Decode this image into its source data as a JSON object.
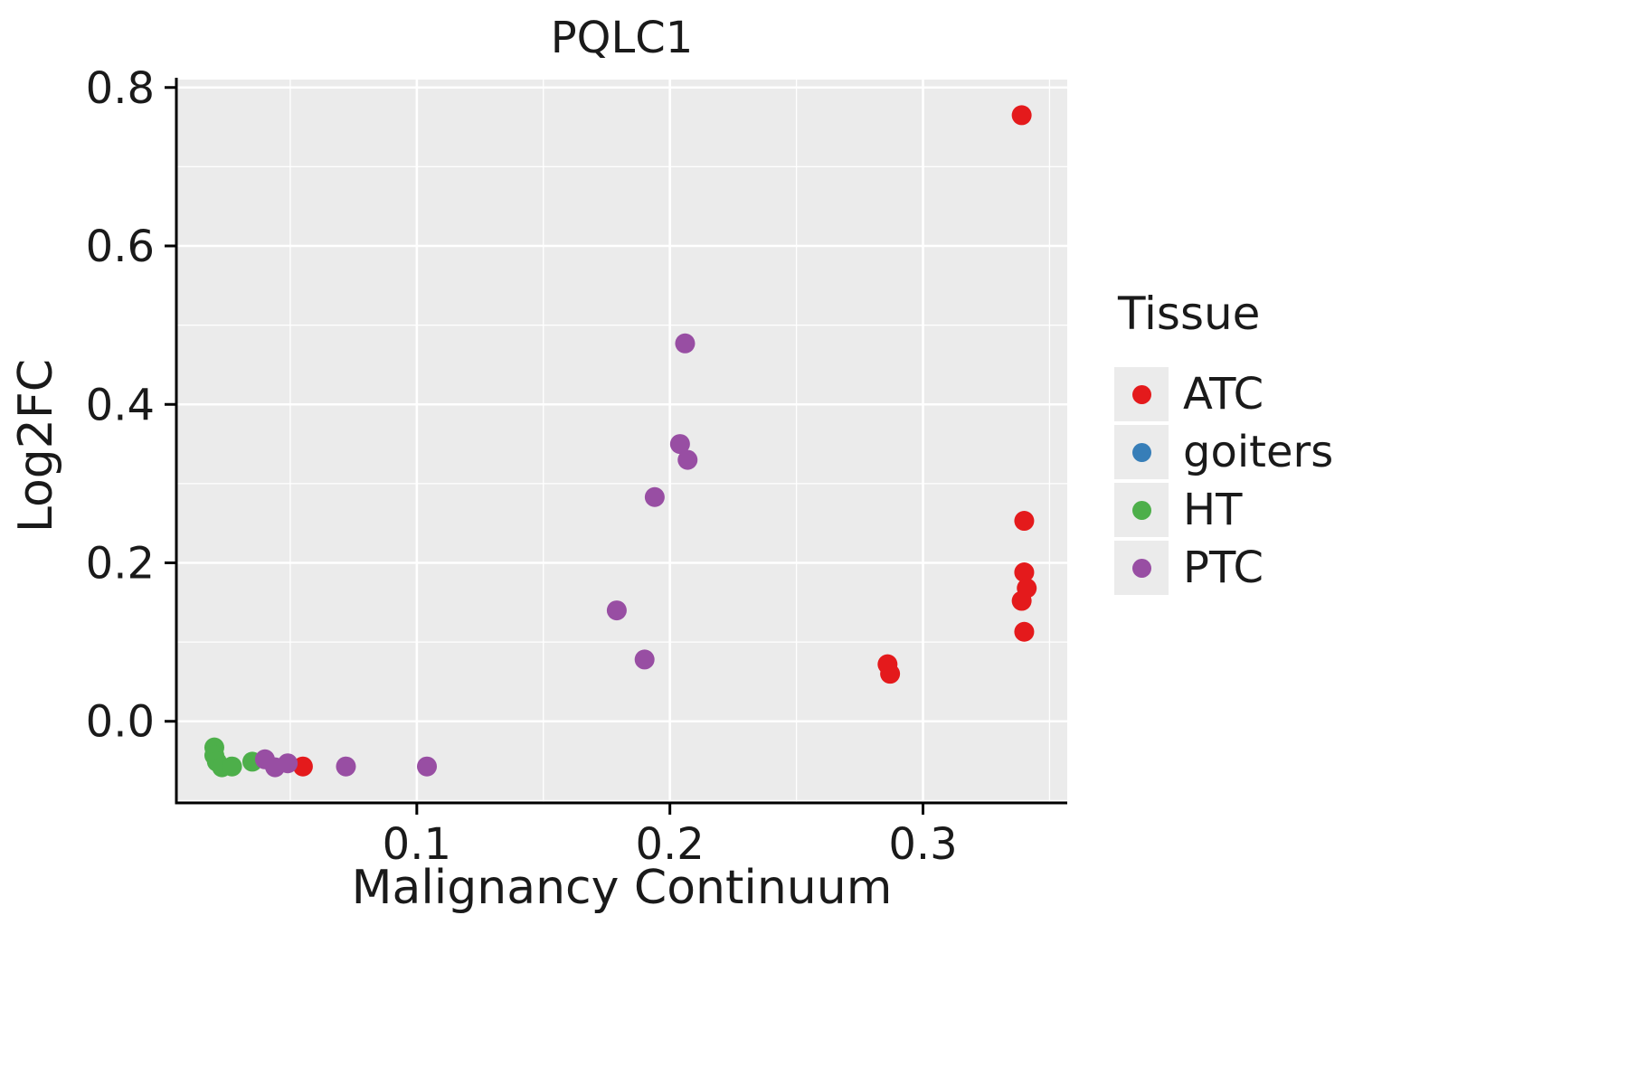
{
  "chart_data": {
    "type": "scatter",
    "title": "PQLC1",
    "xlabel": "Malignancy Continuum",
    "ylabel": "Log2FC",
    "legend_title": "Tissue",
    "xlim": [
      0.005,
      0.357
    ],
    "ylim": [
      -0.103,
      0.81
    ],
    "x_ticks": [
      {
        "v": 0.1,
        "label": "0.1"
      },
      {
        "v": 0.2,
        "label": "0.2"
      },
      {
        "v": 0.3,
        "label": "0.3"
      }
    ],
    "y_ticks": [
      {
        "v": 0.0,
        "label": "0.0"
      },
      {
        "v": 0.2,
        "label": "0.2"
      },
      {
        "v": 0.4,
        "label": "0.4"
      },
      {
        "v": 0.6,
        "label": "0.6"
      },
      {
        "v": 0.8,
        "label": "0.8"
      }
    ],
    "x_minor_ticks": [
      0.05,
      0.15,
      0.25,
      0.35
    ],
    "y_minor_ticks": [
      -0.1,
      0.1,
      0.3,
      0.5,
      0.7
    ],
    "grid": "on",
    "legend_position": "right",
    "panel_color": "#EBEBEB",
    "grid_color": "#FFFFFF",
    "series": [
      {
        "name": "ATC",
        "color": "#E41A1C",
        "points": [
          [
            0.055,
            -0.057
          ],
          [
            0.286,
            0.072
          ],
          [
            0.287,
            0.06
          ],
          [
            0.339,
            0.765
          ],
          [
            0.34,
            0.253
          ],
          [
            0.34,
            0.188
          ],
          [
            0.341,
            0.168
          ],
          [
            0.339,
            0.152
          ],
          [
            0.34,
            0.113
          ]
        ]
      },
      {
        "name": "goiters",
        "color": "#377EB8",
        "points": []
      },
      {
        "name": "HT",
        "color": "#4DAF4A",
        "points": [
          [
            0.02,
            -0.033
          ],
          [
            0.02,
            -0.043
          ],
          [
            0.021,
            -0.051
          ],
          [
            0.023,
            -0.058
          ],
          [
            0.027,
            -0.057
          ],
          [
            0.035,
            -0.051
          ]
        ]
      },
      {
        "name": "PTC",
        "color": "#984EA3",
        "points": [
          [
            0.04,
            -0.048
          ],
          [
            0.044,
            -0.058
          ],
          [
            0.049,
            -0.053
          ],
          [
            0.072,
            -0.057
          ],
          [
            0.104,
            -0.057
          ],
          [
            0.179,
            0.14
          ],
          [
            0.19,
            0.078
          ],
          [
            0.194,
            0.283
          ],
          [
            0.204,
            0.35
          ],
          [
            0.207,
            0.33
          ],
          [
            0.206,
            0.477
          ]
        ]
      }
    ]
  }
}
